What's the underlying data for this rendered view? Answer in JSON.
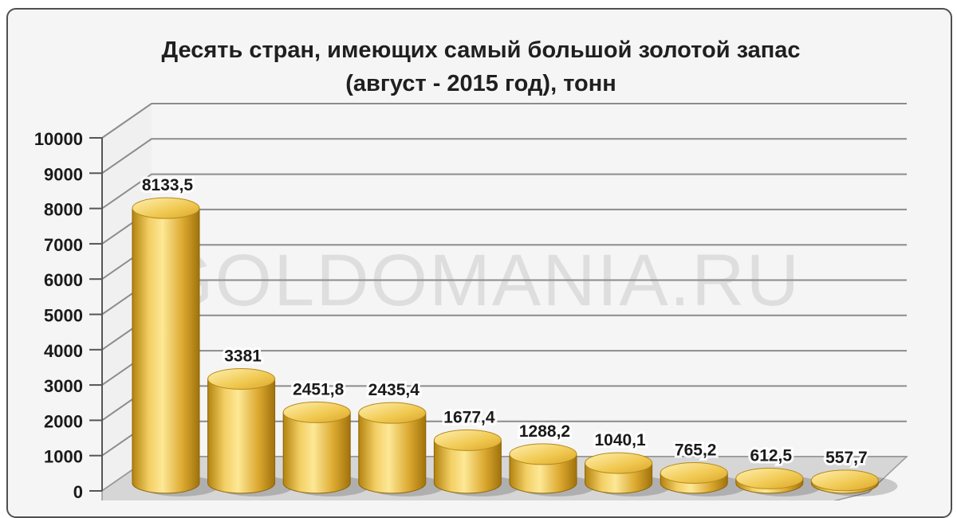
{
  "chart_data": {
    "type": "bar",
    "title_lines": [
      "Десять стран, имеющих самый большой золотой запас",
      "(август - 2015 год), тонн"
    ],
    "categories": [
      "",
      "",
      "",
      "",
      "",
      "",
      "",
      "",
      "",
      ""
    ],
    "values": [
      8133.5,
      3381,
      2451.8,
      2435.4,
      1677.4,
      1288.2,
      1040.1,
      765.2,
      612.5,
      557.7
    ],
    "value_labels": [
      "8133,5",
      "3381",
      "2451,8",
      "2435,4",
      "1677,4",
      "1288,2",
      "1040,1",
      "765,2",
      "612,5",
      "557,7"
    ],
    "ylim": [
      0,
      10000
    ],
    "yticks": [
      0,
      1000,
      2000,
      3000,
      4000,
      5000,
      6000,
      7000,
      8000,
      9000,
      10000
    ],
    "ytick_labels": [
      "0",
      "1000",
      "2000",
      "3000",
      "4000",
      "5000",
      "6000",
      "7000",
      "8000",
      "9000",
      "10000"
    ],
    "grid": true,
    "xlabel": "",
    "ylabel": "",
    "bar_style": "3d-cylinder",
    "colors": {
      "bar_light": "#fce58a",
      "bar_mid": "#e2b23a",
      "bar_dark": "#a87a10",
      "grid": "#8c8c8c",
      "wall": "#f5f5f5"
    }
  },
  "watermark": "GOLDOMANIA.RU"
}
